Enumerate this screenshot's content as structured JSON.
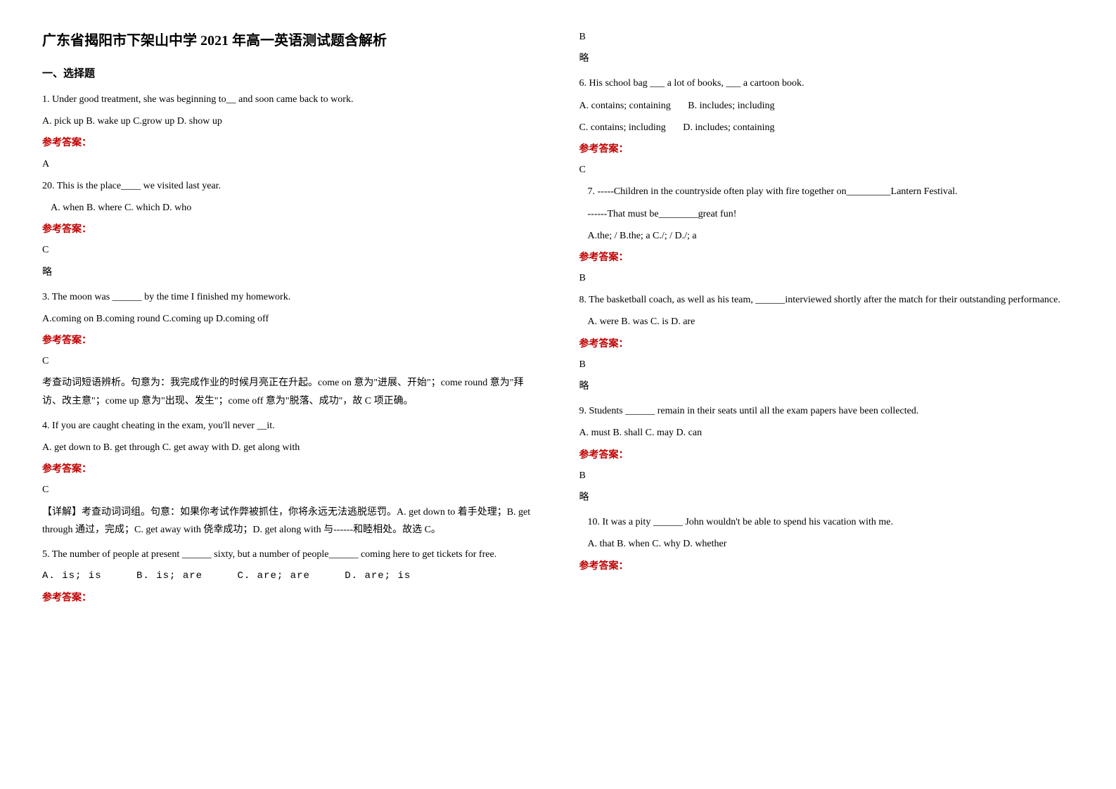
{
  "title": "广东省揭阳市下架山中学 2021 年高一英语测试题含解析",
  "section_heading": "一、选择题",
  "answer_label": "参考答案：",
  "left": {
    "q1": {
      "text": "1. Under good treatment, she was beginning to__ and soon came back to work.",
      "options": "A. pick up    B. wake up    C.grow up    D. show up",
      "answer": "A"
    },
    "q20": {
      "text": "20. This is the place____ we visited last year.",
      "options": "A. when        B. where          C. which          D. who",
      "answer": "C",
      "explain": "略"
    },
    "q3": {
      "text": "3. The moon was ______ by the time I finished my homework.",
      "options": "A.coming on    B.coming round C.coming up    D.coming off",
      "answer": "C",
      "explain": "考查动词短语辨析。句意为：我完成作业的时候月亮正在升起。come on 意为\"进展、开始\"；come round 意为\"拜访、改主意\"；come up 意为\"出现、发生\"；come off 意为\"脱落、成功\"，故 C 项正确。"
    },
    "q4": {
      "text": "4. If you are caught cheating in the exam, you'll never __it.",
      "options": "A. get down to   B. get through   C. get away with        D. get along with",
      "answer": "C",
      "explain": "【详解】考查动词词组。句意：如果你考试作弊被抓住，你将永远无法逃脱惩罚。A. get down to 着手处理；B. get through 通过，完成；C. get away with 侥幸成功；D. get along with 与------和睦相处。故选 C。"
    },
    "q5": {
      "text": "5. The number of people at present ______ sixty, but a number of people______ coming here to get tickets for free.",
      "optA": "A. is; is",
      "optB": "B. is; are",
      "optC": "C. are; are",
      "optD": "D. are; is"
    }
  },
  "right": {
    "q5answer": "B",
    "q5explain": "略",
    "q6": {
      "text": "6. His school bag ___ a lot of books, ___ a cartoon book.",
      "optA": "A. contains; containing",
      "optB": "B. includes; including",
      "optC": "C. contains; including",
      "optD": "D. includes; containing",
      "answer": "C"
    },
    "q7": {
      "text1": "7. -----Children in the countryside often play with fire together on_________Lantern Festival.",
      "text2": "------That must be________great fun!",
      "options": "A.the; /      B.the; a      C./; /      D./; a",
      "answer": "B"
    },
    "q8": {
      "text": "8. The basketball coach, as well as his team, ______interviewed shortly after the match for their outstanding performance.",
      "options": "A. were          B. was        C. is          D. are",
      "answer": "B",
      "explain": "略"
    },
    "q9": {
      "text": "9. Students ______ remain in their seats until all the exam papers have been collected.",
      "options": "A. must         B. shall            C. may               D. can",
      "answer": "B",
      "explain": "略"
    },
    "q10": {
      "text": "10. It was a pity ______ John wouldn't be able to spend his vacation with me.",
      "options": "A. that          B. when           C. why            D. whether"
    }
  }
}
